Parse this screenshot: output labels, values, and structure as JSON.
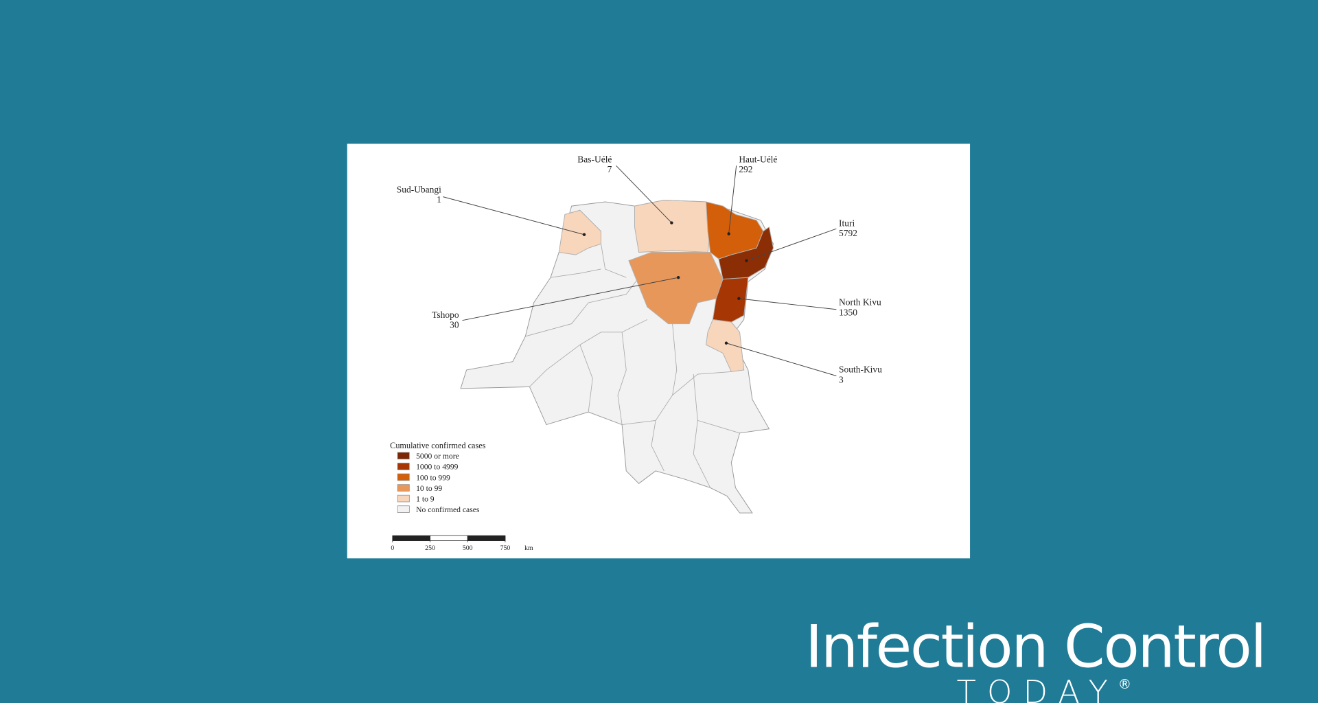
{
  "map": {
    "regions": [
      {
        "name": "Sud-Ubangi",
        "cases": 1
      },
      {
        "name": "Bas-Uélé",
        "cases": 7
      },
      {
        "name": "Haut-Uélé",
        "cases": 292
      },
      {
        "name": "Ituri",
        "cases": 5792
      },
      {
        "name": "North Kivu",
        "cases": 1350
      },
      {
        "name": "Tshopo",
        "cases": 30
      },
      {
        "name": "South-Kivu",
        "cases": 3
      }
    ],
    "legend": {
      "title": "Cumulative confirmed cases",
      "items": [
        {
          "label": "5000 or more",
          "color": "#7f2704"
        },
        {
          "label": "1000 to 4999",
          "color": "#a63603"
        },
        {
          "label": "100 to 999",
          "color": "#d35f0a"
        },
        {
          "label": "10 to 99",
          "color": "#e8975a"
        },
        {
          "label": "1 to 9",
          "color": "#f8d6bb"
        },
        {
          "label": "No confirmed cases",
          "color": "#f2f2f2"
        }
      ]
    },
    "scale_bar": {
      "ticks": [
        0,
        250,
        500,
        750
      ],
      "unit": "km"
    }
  },
  "brand": {
    "name": "Infection Control",
    "tagline": "TODAY",
    "mark": "®"
  }
}
